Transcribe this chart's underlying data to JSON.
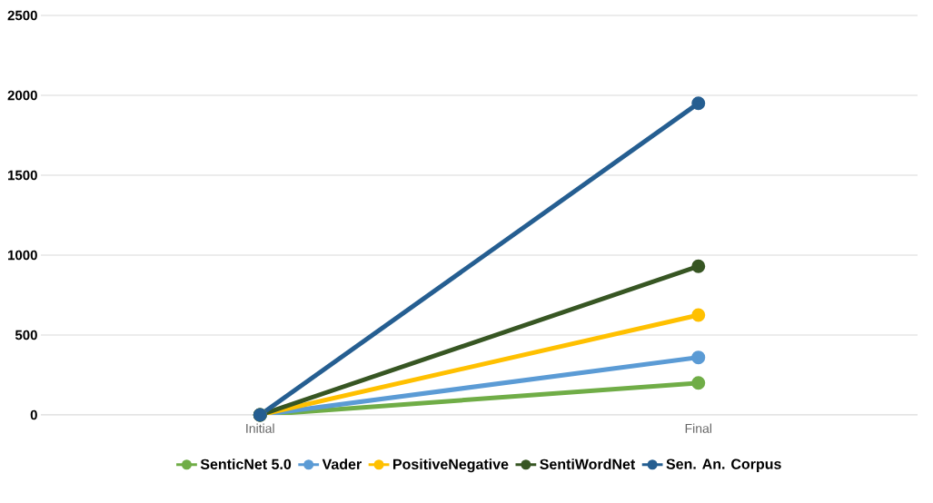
{
  "chart_data": {
    "type": "line",
    "categories": [
      "Initial",
      "Final"
    ],
    "series": [
      {
        "name": "SenticNet 5.0",
        "color": "#70ad47",
        "values": [
          0,
          200
        ]
      },
      {
        "name": "Vader",
        "color": "#5b9bd5",
        "values": [
          0,
          360
        ]
      },
      {
        "name": "PositiveNegative",
        "color": "#ffc000",
        "values": [
          0,
          625
        ]
      },
      {
        "name": "SentiWordNet",
        "color": "#375623",
        "values": [
          0,
          930
        ]
      },
      {
        "name": "Sen. An. Corpus",
        "color": "#255e91",
        "values": [
          0,
          1950
        ]
      }
    ],
    "ylim": [
      0,
      2500
    ],
    "yticks": [
      0,
      500,
      1000,
      1500,
      2000,
      2500
    ],
    "grid": "y",
    "legend": "bottom",
    "marker": "circle",
    "line_style": "solid"
  }
}
